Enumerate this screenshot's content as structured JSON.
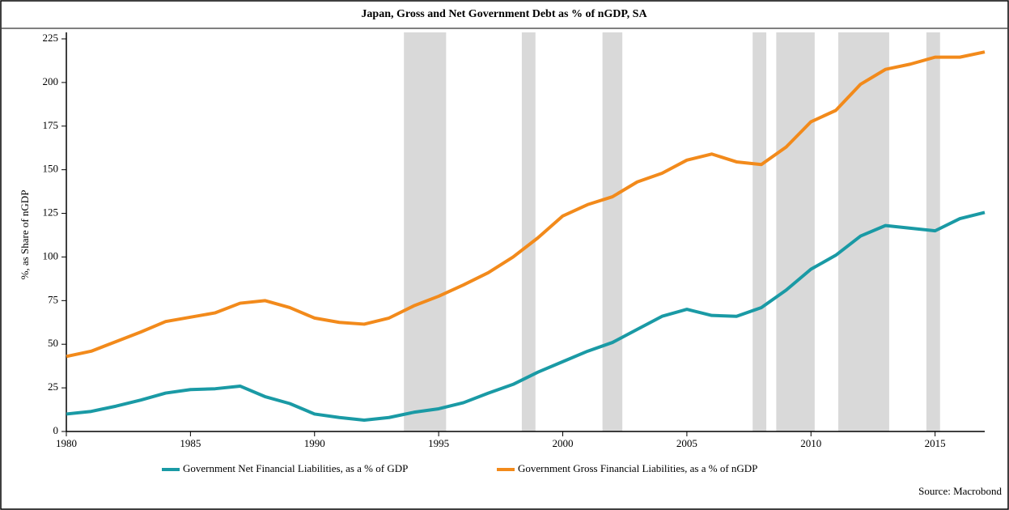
{
  "chart_data": {
    "type": "line",
    "title": "Japan, Gross and Net Government Debt as % of nGDP, SA",
    "y_label": "%, as Share of nGDP",
    "source": "Source: Macrobond",
    "x": [
      1980,
      1981,
      1982,
      1983,
      1984,
      1985,
      1986,
      1987,
      1988,
      1989,
      1990,
      1991,
      1992,
      1993,
      1994,
      1995,
      1996,
      1997,
      1998,
      1999,
      2000,
      2001,
      2002,
      2003,
      2004,
      2005,
      2006,
      2007,
      2008,
      2009,
      2010,
      2011,
      2012,
      2013,
      2014,
      2015,
      2016,
      2017
    ],
    "series": [
      {
        "name": "Government Net Financial Liabilities, as a % of GDP",
        "color": "#1a9aa5",
        "values": [
          10,
          11.5,
          14.5,
          18,
          22,
          24,
          24.5,
          26,
          20,
          16,
          10,
          8,
          6.5,
          8,
          11,
          13,
          16.5,
          22,
          27,
          34,
          40,
          46,
          51,
          58.5,
          66,
          70,
          66.5,
          66,
          71,
          81,
          93,
          101,
          112,
          118,
          116.5,
          115,
          122,
          125.5
        ]
      },
      {
        "name": "Government Gross Financial Liabilities, as a % of nGDP",
        "color": "#f28a1b",
        "values": [
          43,
          46,
          51.5,
          57,
          63,
          65.5,
          68,
          73.5,
          75,
          71,
          65,
          62.5,
          61.5,
          65,
          72,
          77.5,
          84,
          91,
          100,
          111,
          123.5,
          130,
          134.5,
          143,
          148,
          155.5,
          159,
          154.5,
          153,
          163,
          177.5,
          184,
          199,
          207.5,
          210.5,
          214.5,
          214.5,
          217.5
        ]
      }
    ],
    "shaded_periods": [
      [
        1993.6,
        1995.3
      ],
      [
        1998.35,
        1998.9
      ],
      [
        2001.6,
        2002.4
      ],
      [
        2007.65,
        2008.2
      ],
      [
        2008.6,
        2010.15
      ],
      [
        2011.1,
        2013.15
      ],
      [
        2014.65,
        2015.2
      ]
    ],
    "shade_color": "#d9d9d9",
    "xlim": [
      1980,
      2017
    ],
    "xticks": [
      1980,
      1985,
      1990,
      1995,
      2000,
      2005,
      2010,
      2015
    ],
    "ylim": [
      0,
      225
    ],
    "yticks": [
      0,
      25,
      50,
      75,
      100,
      125,
      150,
      175,
      200,
      225
    ]
  }
}
